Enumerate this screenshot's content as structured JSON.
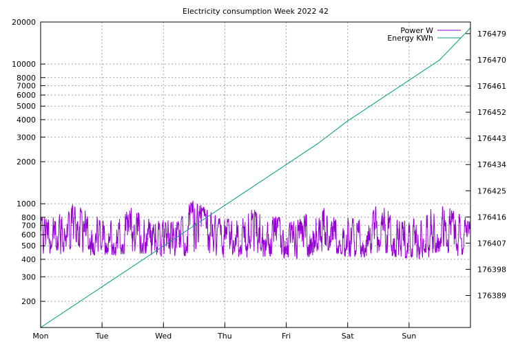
{
  "chart_data": {
    "type": "line",
    "title": "Electricity consumption Week 2022 42",
    "xlabel": "",
    "ylabel": "",
    "y2label": "",
    "x_ticks": [
      "Mon",
      "Tue",
      "Wed",
      "Thu",
      "Fri",
      "Sat",
      "Sun"
    ],
    "y_scale": "log",
    "ylim": [
      130,
      20000
    ],
    "y_ticks": [
      "200",
      "300",
      "400",
      "500",
      "600",
      "700",
      "800",
      "1000",
      "2000",
      "3000",
      "4000",
      "5000",
      "6000",
      "7000",
      "8000",
      "10000",
      "20000"
    ],
    "y2lim": [
      176378,
      176483
    ],
    "y2_ticks": [
      "176389",
      "176398",
      "176407",
      "176416",
      "176425",
      "176434",
      "176443",
      "176452",
      "176461",
      "176470",
      "176479"
    ],
    "grid": true,
    "legend_position": "top-right",
    "series": [
      {
        "name": "Power W",
        "axis": "y",
        "color": "#9400d3",
        "x_days": [
          0.0,
          0.25,
          0.5,
          0.75,
          1.0,
          1.25,
          1.5,
          1.75,
          2.0,
          2.25,
          2.5,
          2.75,
          3.0,
          3.25,
          3.5,
          3.75,
          4.0,
          4.25,
          4.5,
          4.75,
          5.0,
          5.25,
          5.5,
          5.75,
          6.0,
          6.25,
          6.5,
          6.75,
          7.0
        ],
        "values": [
          600,
          560,
          700,
          650,
          560,
          540,
          680,
          560,
          540,
          520,
          720,
          600,
          560,
          540,
          620,
          560,
          560,
          540,
          720,
          560,
          560,
          540,
          700,
          560,
          540,
          540,
          720,
          580,
          560
        ],
        "band_low": [
          430,
          420,
          440,
          430,
          420,
          420,
          450,
          420,
          410,
          400,
          440,
          430,
          410,
          400,
          420,
          410,
          400,
          390,
          440,
          410,
          410,
          400,
          440,
          410,
          400,
          400,
          450,
          420,
          420
        ],
        "band_high": [
          820,
          800,
          1000,
          900,
          780,
          760,
          960,
          820,
          780,
          760,
          1100,
          880,
          800,
          760,
          1000,
          820,
          800,
          780,
          1120,
          820,
          820,
          780,
          1000,
          840,
          800,
          780,
          1100,
          880,
          760
        ]
      },
      {
        "name": "Energy KWh",
        "axis": "y2",
        "color": "#009e73",
        "x_days": [
          0.0,
          0.5,
          1.0,
          1.5,
          2.0,
          2.5,
          3.0,
          3.5,
          4.0,
          4.5,
          5.0,
          5.5,
          6.0,
          6.5,
          7.0
        ],
        "values": [
          176378,
          176385,
          176392,
          176399,
          176406,
          176413,
          176420,
          176427,
          176434,
          176441,
          176449,
          176456,
          176463,
          176470,
          176481
        ]
      }
    ]
  }
}
